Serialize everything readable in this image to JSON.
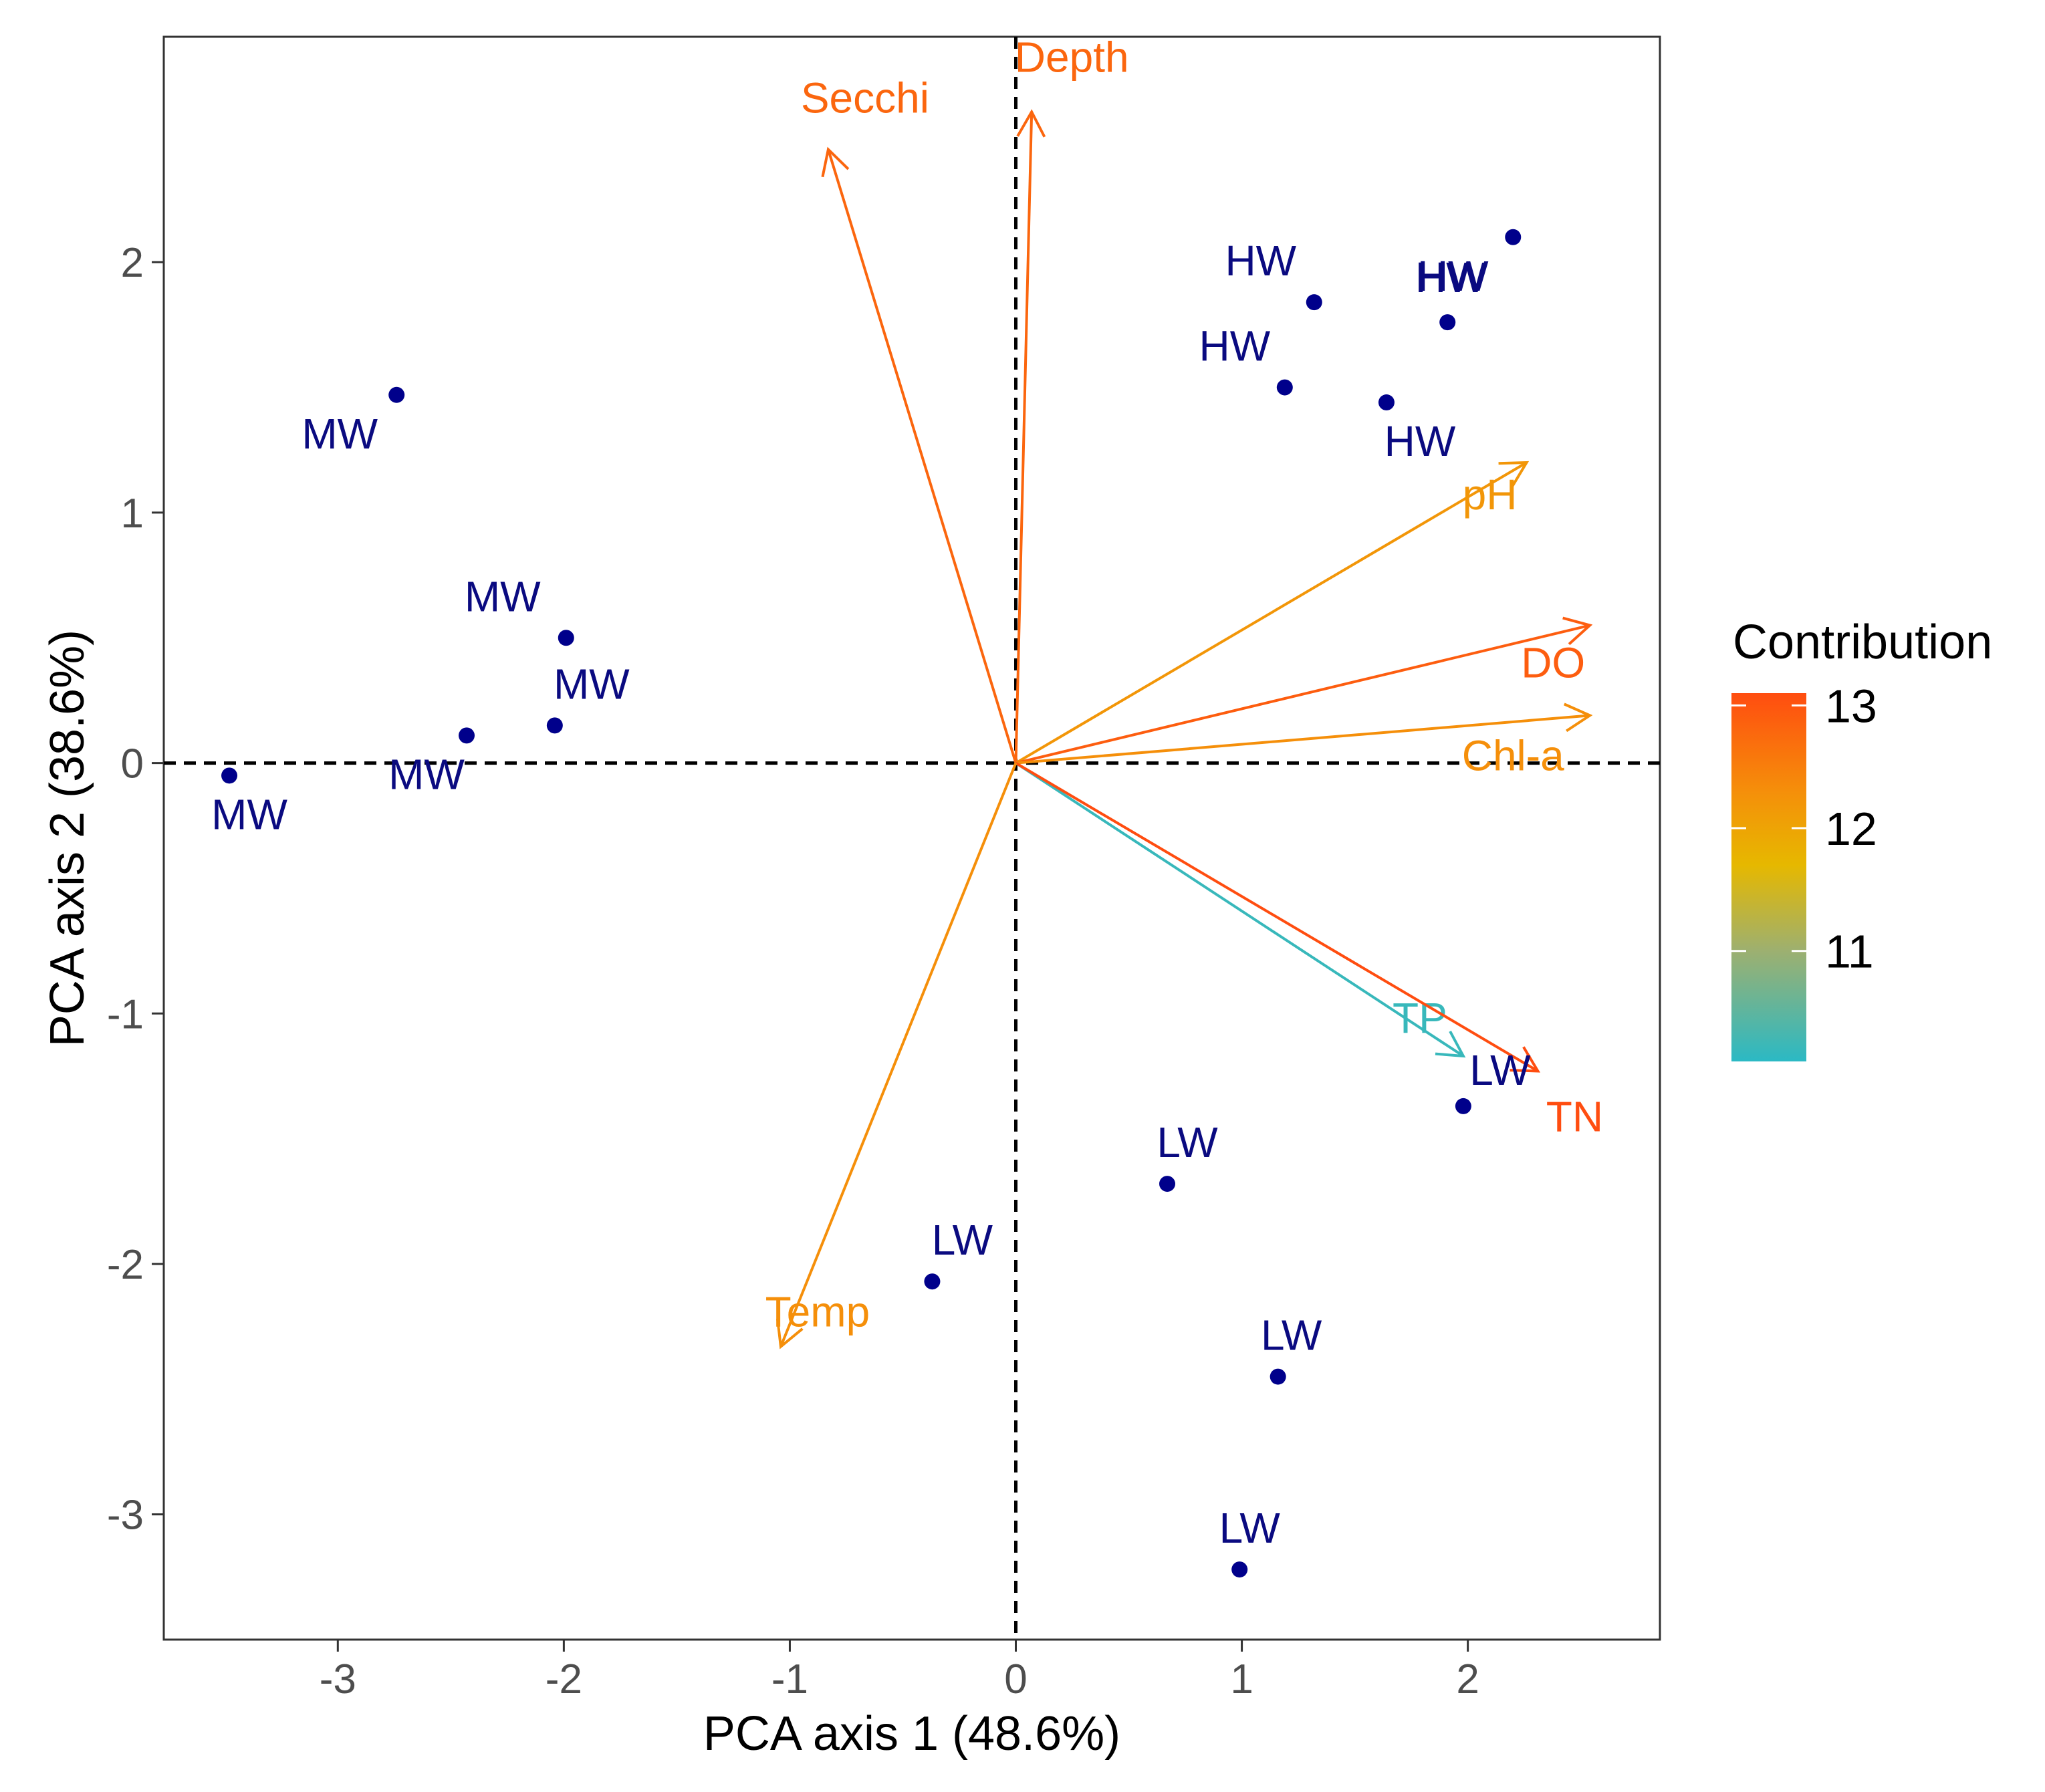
{
  "chart_data": {
    "type": "scatter",
    "subtype": "pca-biplot",
    "xlabel": "PCA axis 1 (48.6%)",
    "ylabel": "PCA axis 2 (38.6%)",
    "xlim": [
      -3.77,
      2.85
    ],
    "ylim": [
      -3.5,
      2.9
    ],
    "xticks": [
      -3,
      -2,
      -1,
      0,
      1,
      2
    ],
    "yticks": [
      -3,
      -2,
      -1,
      0,
      1,
      2
    ],
    "reference_lines": {
      "x": 0,
      "y": 0,
      "style": "dashed"
    },
    "point_color": "#00008b",
    "label_color": "#0a0a80",
    "points": [
      {
        "label": "MW",
        "x": -2.74,
        "y": 1.47
      },
      {
        "label": "MW",
        "x": -1.99,
        "y": 0.5
      },
      {
        "label": "MW",
        "x": -2.04,
        "y": 0.15
      },
      {
        "label": "MW",
        "x": -2.43,
        "y": 0.11
      },
      {
        "label": "MW",
        "x": -3.48,
        "y": -0.05
      },
      {
        "label": "HW",
        "x": 1.32,
        "y": 1.84
      },
      {
        "label": "HW",
        "x": 1.19,
        "y": 1.5
      },
      {
        "label": "HW",
        "x": 1.91,
        "y": 1.76
      },
      {
        "label": "HW",
        "x": 2.2,
        "y": 2.1
      },
      {
        "label": "HW",
        "x": 1.64,
        "y": 1.44
      },
      {
        "label": "LW",
        "x": 1.98,
        "y": -1.37
      },
      {
        "label": "LW",
        "x": 0.67,
        "y": -1.68
      },
      {
        "label": "LW",
        "x": -0.37,
        "y": -2.07
      },
      {
        "label": "LW",
        "x": 1.16,
        "y": -2.45
      },
      {
        "label": "LW",
        "x": 0.99,
        "y": -3.22
      }
    ],
    "vectors": [
      {
        "name": "Depth",
        "x": 0.07,
        "y": 2.6,
        "contribution": 12.8
      },
      {
        "name": "Secchi",
        "x": -0.83,
        "y": 2.45,
        "contribution": 12.8
      },
      {
        "name": "pH",
        "x": 2.26,
        "y": 1.2,
        "contribution": 12.2
      },
      {
        "name": "DO",
        "x": 2.54,
        "y": 0.55,
        "contribution": 12.9
      },
      {
        "name": "Chl-a",
        "x": 2.54,
        "y": 0.19,
        "contribution": 12.3
      },
      {
        "name": "TP",
        "x": 1.98,
        "y": -1.17,
        "contribution": 10.2
      },
      {
        "name": "TN",
        "x": 2.31,
        "y": -1.23,
        "contribution": 13.1
      },
      {
        "name": "Temp",
        "x": -1.04,
        "y": -2.33,
        "contribution": 12.3
      }
    ],
    "legend": {
      "title": "Contribution",
      "placement": "right",
      "min": 10.1,
      "max": 13.1,
      "ticks": [
        11,
        12,
        13
      ],
      "gradient": [
        {
          "value": 10.1,
          "color": "#2bb9c4"
        },
        {
          "value": 11.0,
          "color": "#9db070"
        },
        {
          "value": 11.7,
          "color": "#e6b800"
        },
        {
          "value": 12.3,
          "color": "#f58f0a"
        },
        {
          "value": 13.1,
          "color": "#ff4d10"
        }
      ]
    }
  }
}
